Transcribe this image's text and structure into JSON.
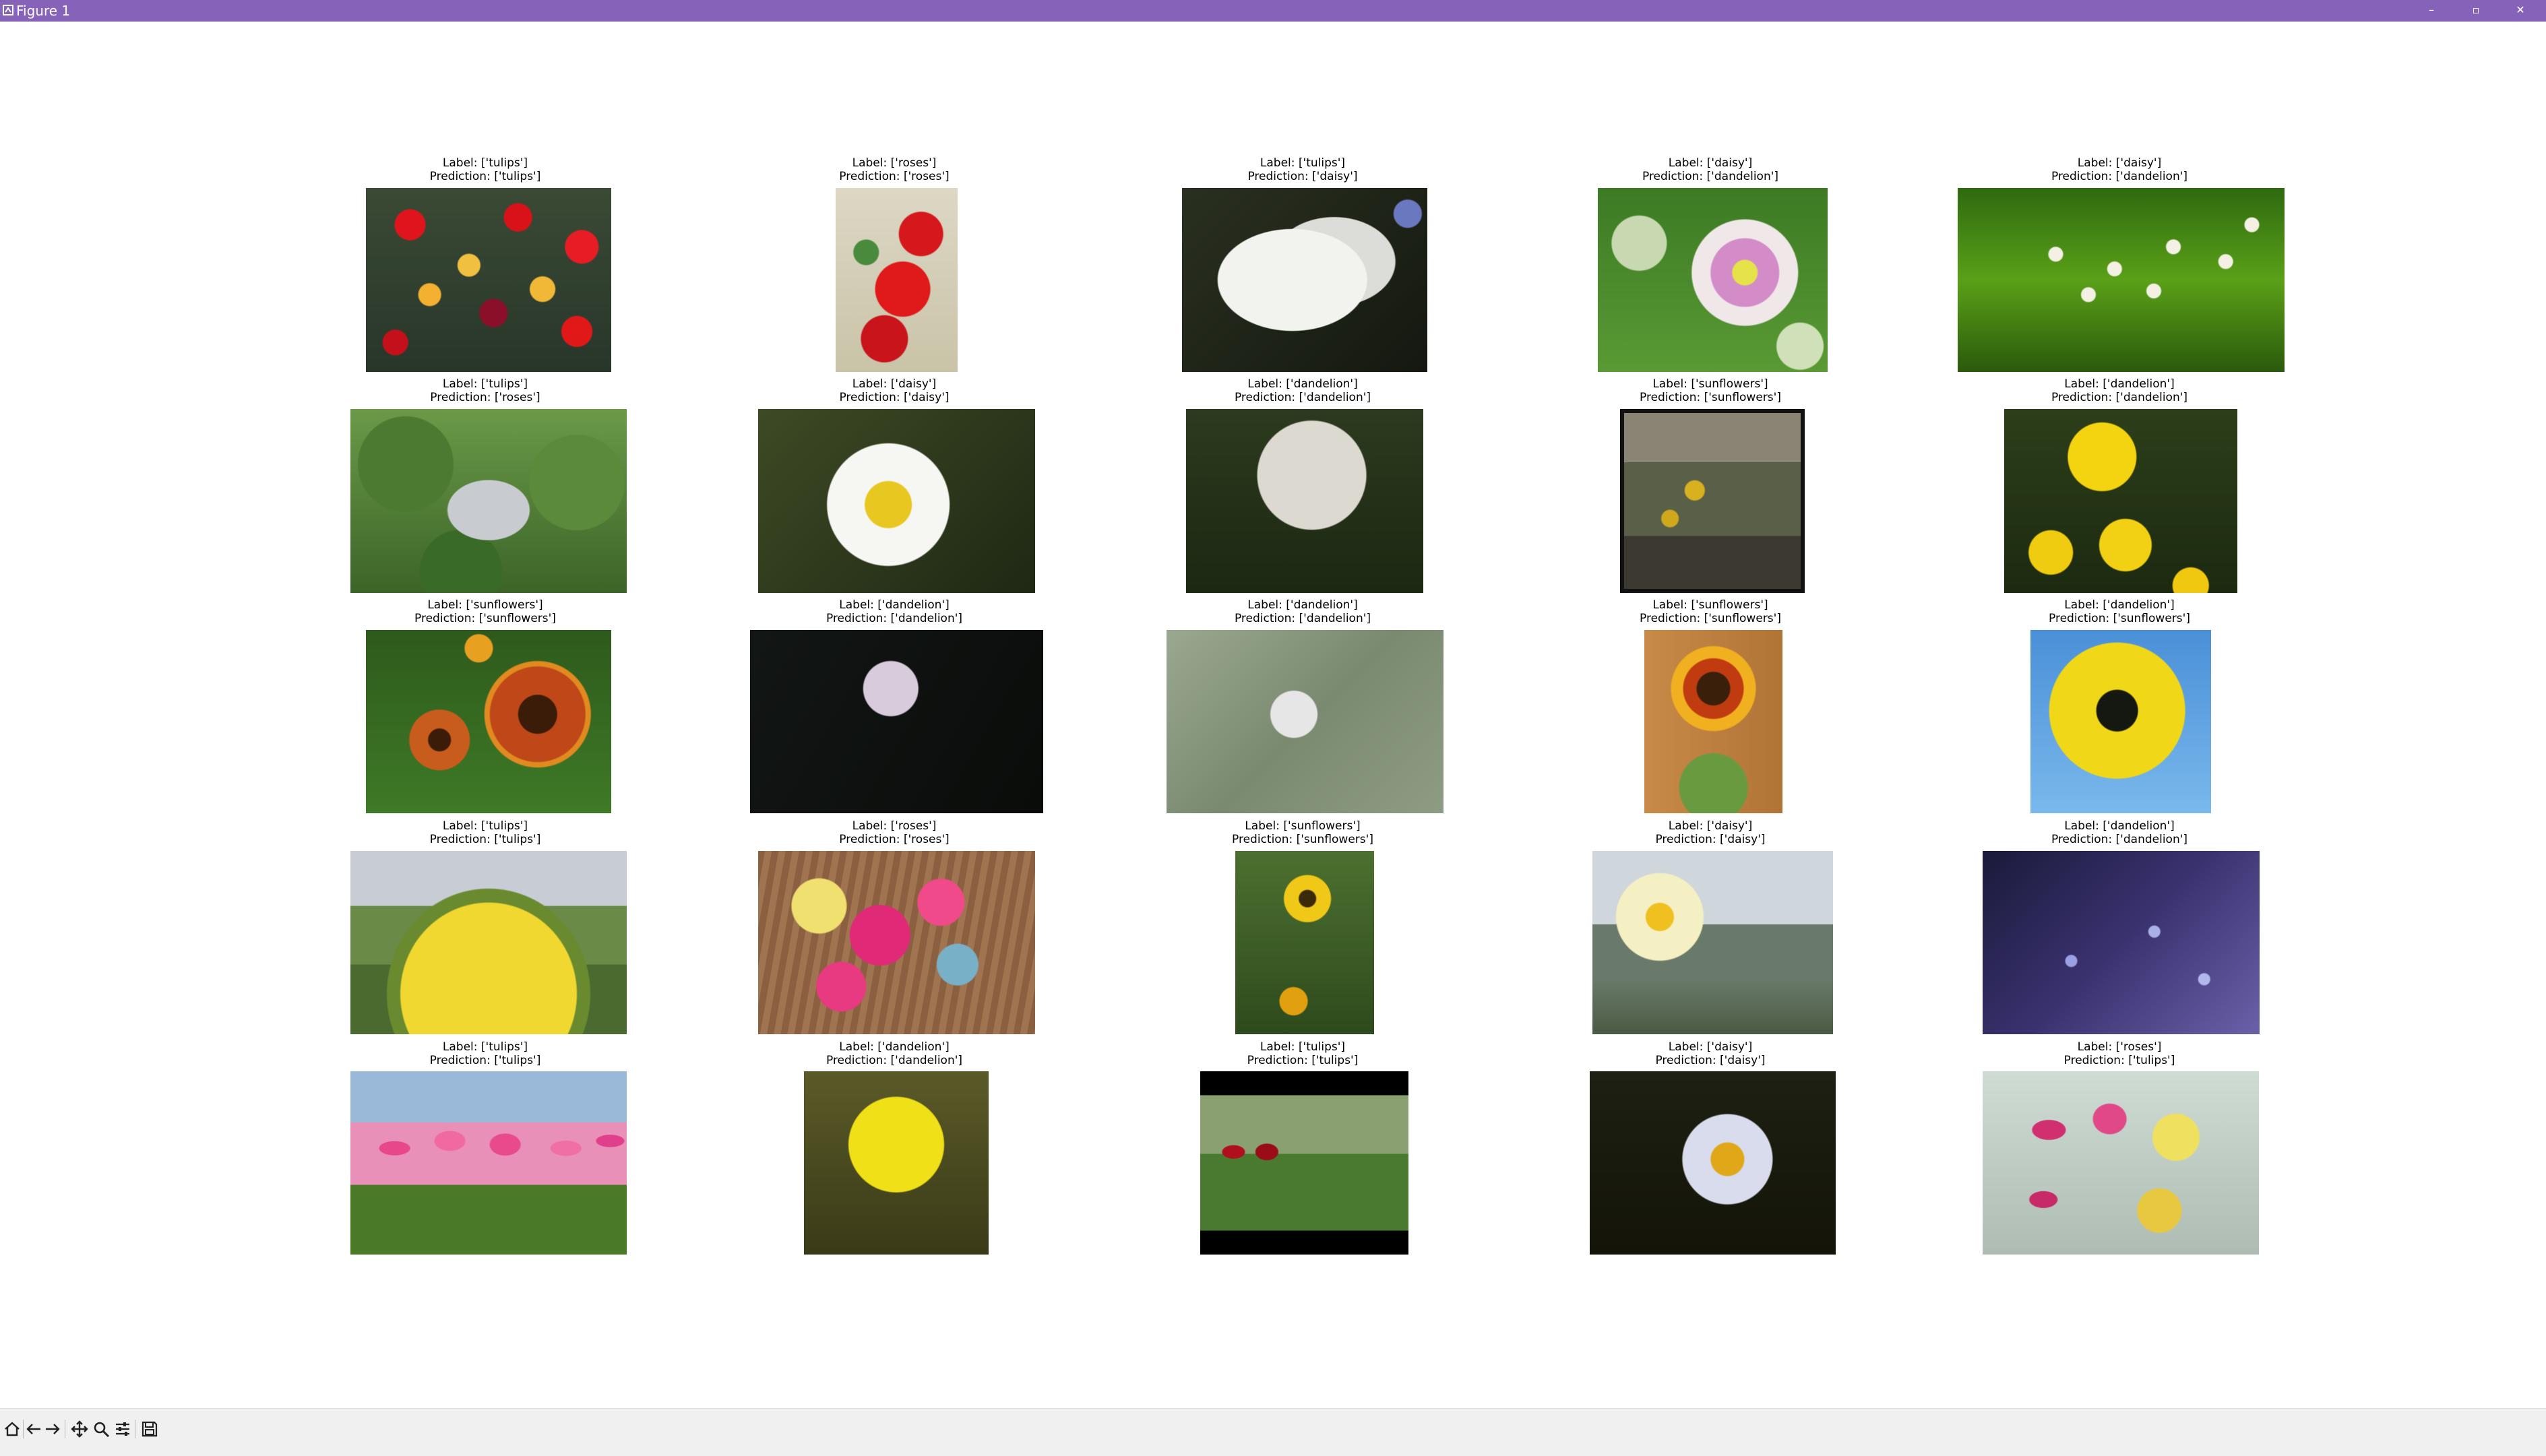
{
  "window": {
    "title": "Figure 1",
    "controls": {
      "minimize": "–",
      "maximize": "▫",
      "close": "✕"
    }
  },
  "toolbar": {
    "buttons": [
      {
        "name": "home-icon"
      },
      {
        "name": "back-icon"
      },
      {
        "name": "forward-icon"
      },
      {
        "name": "pan-icon"
      },
      {
        "name": "zoom-icon"
      },
      {
        "name": "configure-subplots-icon"
      },
      {
        "name": "save-icon"
      }
    ]
  },
  "figure": {
    "subplots": [
      {
        "label": "Label: ['tulips']",
        "prediction": "Prediction: ['tulips']"
      },
      {
        "label": "Label: ['roses']",
        "prediction": "Prediction: ['roses']"
      },
      {
        "label": "Label: ['tulips']",
        "prediction": "Prediction: ['daisy']"
      },
      {
        "label": "Label: ['daisy']",
        "prediction": "Prediction: ['dandelion']"
      },
      {
        "label": "Label: ['daisy']",
        "prediction": "Prediction: ['dandelion']"
      },
      {
        "label": "Label: ['tulips']",
        "prediction": "Prediction: ['roses']"
      },
      {
        "label": "Label: ['daisy']",
        "prediction": "Prediction: ['daisy']"
      },
      {
        "label": "Label: ['dandelion']",
        "prediction": "Prediction: ['dandelion']"
      },
      {
        "label": "Label: ['sunflowers']",
        "prediction": "Prediction: ['sunflowers']"
      },
      {
        "label": "Label: ['dandelion']",
        "prediction": "Prediction: ['dandelion']"
      },
      {
        "label": "Label: ['sunflowers']",
        "prediction": "Prediction: ['sunflowers']"
      },
      {
        "label": "Label: ['dandelion']",
        "prediction": "Prediction: ['dandelion']"
      },
      {
        "label": "Label: ['dandelion']",
        "prediction": "Prediction: ['dandelion']"
      },
      {
        "label": "Label: ['sunflowers']",
        "prediction": "Prediction: ['sunflowers']"
      },
      {
        "label": "Label: ['dandelion']",
        "prediction": "Prediction: ['sunflowers']"
      },
      {
        "label": "Label: ['tulips']",
        "prediction": "Prediction: ['tulips']"
      },
      {
        "label": "Label: ['roses']",
        "prediction": "Prediction: ['roses']"
      },
      {
        "label": "Label: ['sunflowers']",
        "prediction": "Prediction: ['sunflowers']"
      },
      {
        "label": "Label: ['daisy']",
        "prediction": "Prediction: ['daisy']"
      },
      {
        "label": "Label: ['dandelion']",
        "prediction": "Prediction: ['dandelion']"
      },
      {
        "label": "Label: ['tulips']",
        "prediction": "Prediction: ['tulips']"
      },
      {
        "label": "Label: ['dandelion']",
        "prediction": "Prediction: ['dandelion']"
      },
      {
        "label": "Label: ['tulips']",
        "prediction": "Prediction: ['tulips']"
      },
      {
        "label": "Label: ['daisy']",
        "prediction": "Prediction: ['daisy']"
      },
      {
        "label": "Label: ['roses']",
        "prediction": "Prediction: ['tulips']"
      }
    ]
  }
}
